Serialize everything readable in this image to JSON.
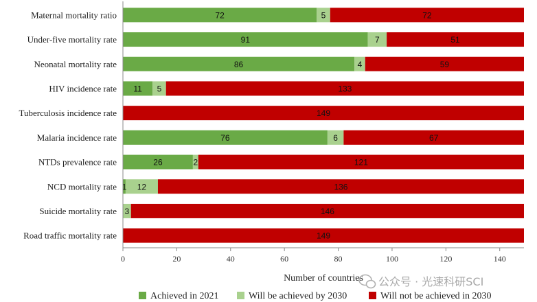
{
  "colors": {
    "achieved": "#6aaa46",
    "will_achieve": "#a9d18e",
    "not_achieved": "#c00000",
    "axis": "#888888",
    "watermark": "#a8a8a8"
  },
  "legend": {
    "achieved": "Achieved in 2021",
    "will_achieve": "Will be achieved by 2030",
    "not_achieved": "Will not be achieved in 2030"
  },
  "watermark": {
    "text": "公众号 · 光速科研SCI",
    "icon": "wechat-icon"
  },
  "chart_data": {
    "type": "bar",
    "orientation": "horizontal",
    "stacked": true,
    "title": "",
    "xlabel": "Number of countries",
    "ylabel": "",
    "xlim": [
      0,
      149
    ],
    "xticks": [
      0,
      20,
      40,
      60,
      80,
      100,
      120,
      140
    ],
    "grid": false,
    "legend_position": "bottom",
    "categories": [
      "Maternal mortality ratio",
      "Under-five mortality rate",
      "Neonatal mortality rate",
      "HIV incidence rate",
      "Tuberculosis incidence rate",
      "Malaria incidence rate",
      "NTDs prevalence rate",
      "NCD mortality rate",
      "Suicide mortality rate",
      "Road traffic mortality rate"
    ],
    "series": [
      {
        "name": "Achieved in 2021",
        "key": "achieved",
        "values": [
          72,
          91,
          86,
          11,
          0,
          76,
          26,
          1,
          0,
          0
        ]
      },
      {
        "name": "Will be achieved by 2030",
        "key": "will_achieve",
        "values": [
          5,
          7,
          4,
          5,
          0,
          6,
          2,
          12,
          3,
          0
        ]
      },
      {
        "name": "Will not be achieved in 2030",
        "key": "not_achieved",
        "values": [
          72,
          51,
          59,
          133,
          149,
          67,
          121,
          136,
          146,
          149
        ]
      }
    ]
  }
}
